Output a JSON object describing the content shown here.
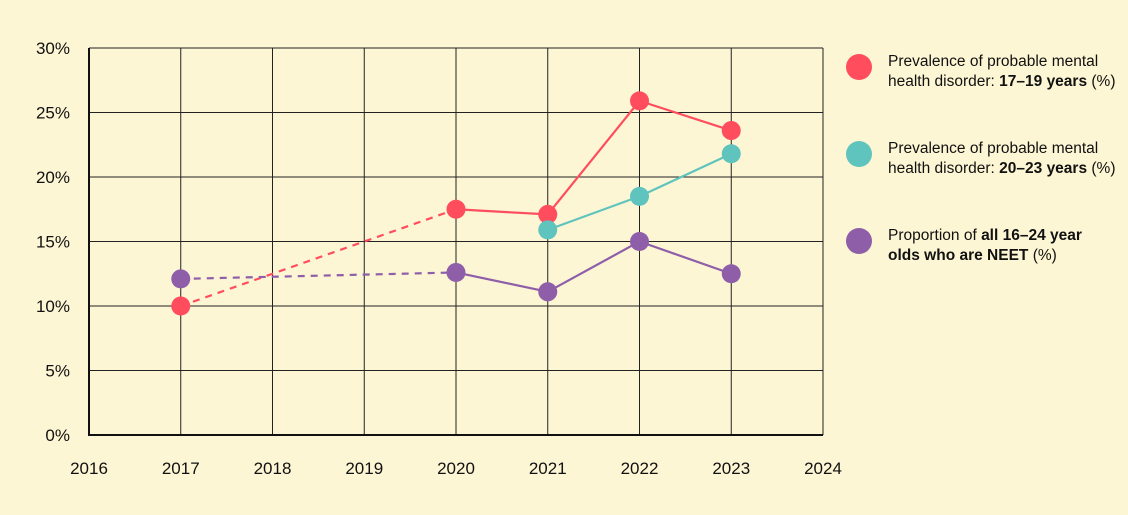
{
  "chart_data": {
    "type": "line",
    "title": "",
    "xlabel": "",
    "ylabel": "",
    "xlim": [
      2016,
      2024
    ],
    "ylim": [
      0,
      30
    ],
    "x_ticks": [
      "2016",
      "2017",
      "2018",
      "2019",
      "2020",
      "2021",
      "2022",
      "2023",
      "2024"
    ],
    "y_ticks": [
      "0%",
      "5%",
      "10%",
      "15%",
      "20%",
      "25%",
      "30%"
    ],
    "grid": true,
    "legend_position": "right",
    "series": [
      {
        "name": "Prevalence of probable mental health disorder: 17–19 years (%)",
        "legend": {
          "pre": "Prevalence of probable mental health disorder: ",
          "bold": "17–19 years",
          "post": " (%)"
        },
        "color": "#ff4d5e",
        "x": [
          2017,
          2020,
          2021,
          2022,
          2023
        ],
        "y": [
          10.0,
          17.5,
          17.1,
          25.9,
          23.6
        ],
        "dashed_segments": [
          0
        ]
      },
      {
        "name": "Prevalence of probable mental health disorder: 20–23 years (%)",
        "legend": {
          "pre": "Prevalence of probable mental health disorder: ",
          "bold": "20–23 years",
          "post": " (%)"
        },
        "color": "#5fc4bd",
        "x": [
          2021,
          2022,
          2023
        ],
        "y": [
          15.9,
          18.5,
          21.8
        ],
        "dashed_segments": []
      },
      {
        "name": "Proportion of all 16–24 year olds who are NEET (%)",
        "legend": {
          "pre": "Proportion of ",
          "bold": "all 16–24 year olds who are NEET",
          "post": " (%)"
        },
        "color": "#8e5ea9",
        "x": [
          2017,
          2020,
          2021,
          2022,
          2023
        ],
        "y": [
          12.1,
          12.6,
          11.1,
          15.0,
          12.5
        ],
        "dashed_segments": [
          0
        ]
      }
    ]
  }
}
